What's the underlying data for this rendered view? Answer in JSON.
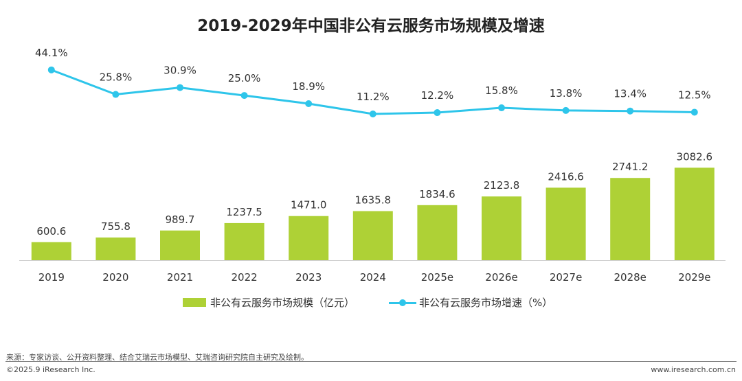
{
  "chart_data": {
    "type": "bar",
    "title": "2019-2029年中国非公有云服务市场规模及增速",
    "categories": [
      "2019",
      "2020",
      "2021",
      "2022",
      "2023",
      "2024",
      "2025e",
      "2026e",
      "2027e",
      "2028e",
      "2029e"
    ],
    "series": [
      {
        "name": "非公有云服务市场规模（亿元）",
        "type": "bar",
        "color": "#aed136",
        "values": [
          600.6,
          755.8,
          989.7,
          1237.5,
          1471.0,
          1635.8,
          1834.6,
          2123.8,
          2416.6,
          2741.2,
          3082.6
        ],
        "labels": [
          "600.6",
          "755.8",
          "989.7",
          "1237.5",
          "1471.0",
          "1635.8",
          "1834.6",
          "2123.8",
          "2416.6",
          "2741.2",
          "3082.6"
        ]
      },
      {
        "name": "非公有云服务市场增速（%）",
        "type": "line",
        "color": "#2ec5ea",
        "values": [
          44.1,
          25.8,
          30.9,
          25.0,
          18.9,
          11.2,
          12.2,
          15.8,
          13.8,
          13.4,
          12.5
        ],
        "labels": [
          "44.1%",
          "25.8%",
          "30.9%",
          "25.0%",
          "18.9%",
          "11.2%",
          "12.2%",
          "15.8%",
          "13.8%",
          "13.4%",
          "12.5%"
        ]
      }
    ],
    "legend_position": "bottom",
    "grid": false
  },
  "footer": {
    "source": "来源：专家访谈、公开资料整理、结合艾瑞云市场模型、艾瑞咨询研究院自主研究及绘制。",
    "copyright": "©2025.9 iResearch Inc.",
    "website": "www.iresearch.com.cn"
  }
}
